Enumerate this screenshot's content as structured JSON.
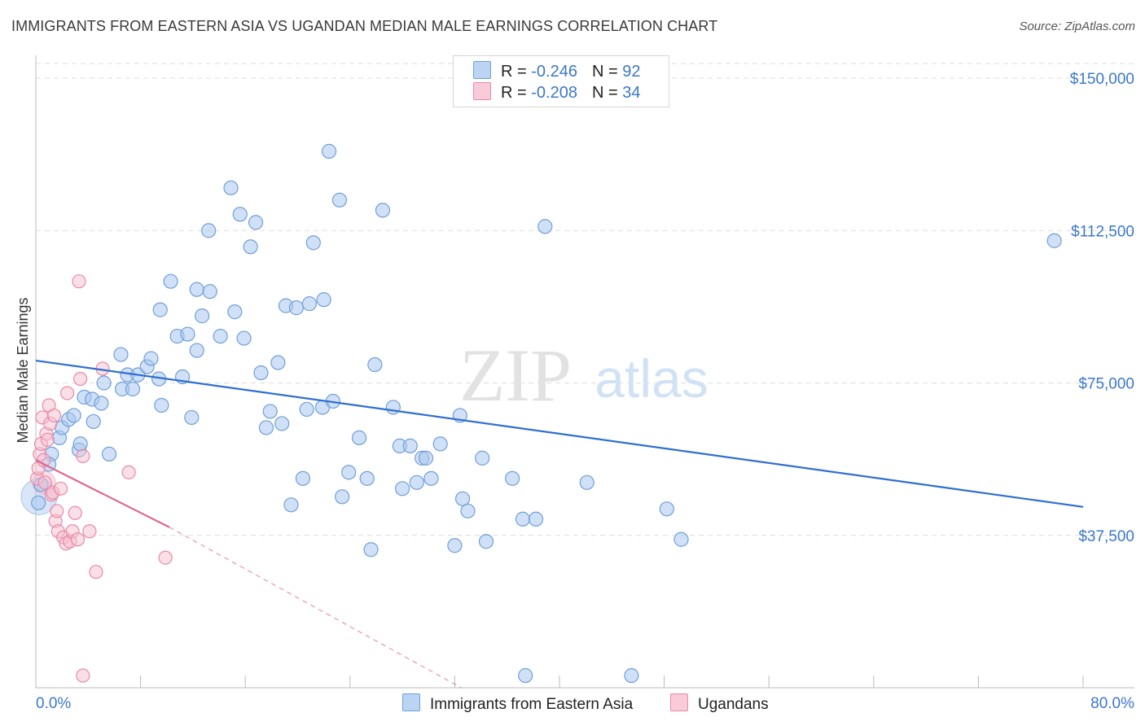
{
  "title": "IMMIGRANTS FROM EASTERN ASIA VS UGANDAN MEDIAN MALE EARNINGS CORRELATION CHART",
  "source": "Source: ZipAtlas.com",
  "watermark": {
    "zip": "ZIP",
    "atlas": "atlas"
  },
  "colors": {
    "blue_fill": "#a9c8f0",
    "blue_stroke": "#6f9fd8",
    "blue_line": "#2e6fd0",
    "pink_fill": "#f7bfd0",
    "pink_stroke": "#e68aa8",
    "pink_line": "#e06890",
    "grid": "#dddddd",
    "tick_text": "#3b78c9"
  },
  "legend": {
    "rows": [
      {
        "r_label": "R = ",
        "r_value": "-0.246",
        "n_label": "N = ",
        "n_value": "92"
      },
      {
        "r_label": "R = ",
        "r_value": "-0.208",
        "n_label": "N = ",
        "n_value": "34"
      }
    ]
  },
  "bottom_legend": [
    "Immigrants from Eastern Asia",
    "Ugandans"
  ],
  "chart_data": {
    "type": "scatter",
    "ylabel": "Median Male Earnings",
    "xlim": [
      0,
      80
    ],
    "ylim": [
      0,
      157500
    ],
    "x_tick_labels": {
      "min": "0.0%",
      "max": "80.0%"
    },
    "y_ticks": [
      {
        "value": 37500,
        "label": "$37,500"
      },
      {
        "value": 75000,
        "label": "$75,000"
      },
      {
        "value": 112500,
        "label": "$112,500"
      },
      {
        "value": 150000,
        "label": "$150,000"
      }
    ],
    "series": [
      {
        "name": "Immigrants from Eastern Asia",
        "R": -0.246,
        "N": 92,
        "trend": {
          "x": [
            0,
            80
          ],
          "y": [
            80500,
            44500
          ]
        },
        "points": [
          [
            0.2,
            45500
          ],
          [
            0.4,
            50000
          ],
          [
            1.2,
            57500
          ],
          [
            1.0,
            55000
          ],
          [
            1.8,
            61500
          ],
          [
            2.0,
            64000
          ],
          [
            2.5,
            66000
          ],
          [
            2.9,
            67000
          ],
          [
            3.3,
            58500
          ],
          [
            3.4,
            60000
          ],
          [
            4.4,
            65500
          ],
          [
            3.7,
            71500
          ],
          [
            4.3,
            71000
          ],
          [
            5.0,
            70000
          ],
          [
            5.6,
            57500
          ],
          [
            5.2,
            75000
          ],
          [
            6.6,
            73500
          ],
          [
            6.5,
            82000
          ],
          [
            7.0,
            77000
          ],
          [
            7.4,
            73500
          ],
          [
            7.8,
            77000
          ],
          [
            8.5,
            79000
          ],
          [
            8.8,
            81000
          ],
          [
            9.4,
            76000
          ],
          [
            9.6,
            69500
          ],
          [
            9.5,
            93000
          ],
          [
            10.3,
            100000
          ],
          [
            10.8,
            86500
          ],
          [
            11.2,
            76500
          ],
          [
            11.6,
            87000
          ],
          [
            11.9,
            66500
          ],
          [
            12.3,
            83000
          ],
          [
            12.3,
            98000
          ],
          [
            12.7,
            91500
          ],
          [
            13.2,
            112500
          ],
          [
            13.3,
            97500
          ],
          [
            14.1,
            86500
          ],
          [
            14.9,
            123000
          ],
          [
            15.2,
            92500
          ],
          [
            15.6,
            116500
          ],
          [
            15.9,
            86000
          ],
          [
            16.4,
            108500
          ],
          [
            16.8,
            114500
          ],
          [
            17.2,
            77500
          ],
          [
            17.6,
            64000
          ],
          [
            17.9,
            68000
          ],
          [
            18.5,
            80000
          ],
          [
            18.8,
            65000
          ],
          [
            19.1,
            94000
          ],
          [
            19.5,
            45000
          ],
          [
            19.9,
            93500
          ],
          [
            20.4,
            51500
          ],
          [
            20.7,
            68500
          ],
          [
            20.9,
            94500
          ],
          [
            21.2,
            109500
          ],
          [
            21.9,
            69000
          ],
          [
            22.0,
            95500
          ],
          [
            22.4,
            132000
          ],
          [
            22.7,
            70500
          ],
          [
            23.2,
            120000
          ],
          [
            23.4,
            47000
          ],
          [
            23.9,
            53000
          ],
          [
            24.7,
            61500
          ],
          [
            25.3,
            51500
          ],
          [
            25.6,
            34000
          ],
          [
            25.9,
            79500
          ],
          [
            26.5,
            117500
          ],
          [
            27.3,
            69000
          ],
          [
            27.8,
            59500
          ],
          [
            28.0,
            49000
          ],
          [
            28.6,
            59500
          ],
          [
            29.1,
            50500
          ],
          [
            29.5,
            56500
          ],
          [
            29.8,
            56500
          ],
          [
            30.2,
            51500
          ],
          [
            30.9,
            60000
          ],
          [
            32.0,
            35000
          ],
          [
            32.4,
            67000
          ],
          [
            32.6,
            46500
          ],
          [
            33.0,
            43500
          ],
          [
            34.1,
            56500
          ],
          [
            34.4,
            36000
          ],
          [
            36.4,
            51500
          ],
          [
            37.2,
            41500
          ],
          [
            37.4,
            3000
          ],
          [
            38.2,
            41500
          ],
          [
            38.9,
            113500
          ],
          [
            42.1,
            50500
          ],
          [
            45.5,
            3000
          ],
          [
            48.2,
            44000
          ],
          [
            49.3,
            36500
          ],
          [
            77.8,
            110000
          ]
        ]
      },
      {
        "name": "Ugandans",
        "R": -0.208,
        "N": 34,
        "trend": {
          "x": [
            0,
            10.2
          ],
          "y": [
            56000,
            39500
          ]
        },
        "trend_extension": {
          "x": [
            10.2,
            32.5
          ],
          "y": [
            39500,
            0
          ]
        },
        "points": [
          [
            0.1,
            51500
          ],
          [
            0.2,
            54000
          ],
          [
            0.3,
            57500
          ],
          [
            0.4,
            60000
          ],
          [
            0.5,
            66500
          ],
          [
            0.6,
            56000
          ],
          [
            0.7,
            50500
          ],
          [
            0.8,
            62500
          ],
          [
            0.9,
            61000
          ],
          [
            1.0,
            69500
          ],
          [
            1.1,
            65000
          ],
          [
            1.2,
            47500
          ],
          [
            1.3,
            48000
          ],
          [
            1.4,
            67000
          ],
          [
            1.5,
            41000
          ],
          [
            1.6,
            43500
          ],
          [
            1.7,
            38500
          ],
          [
            1.9,
            49000
          ],
          [
            2.1,
            37000
          ],
          [
            2.3,
            35500
          ],
          [
            2.4,
            72500
          ],
          [
            2.6,
            36000
          ],
          [
            2.8,
            38500
          ],
          [
            3.0,
            43000
          ],
          [
            3.2,
            36500
          ],
          [
            3.3,
            100000
          ],
          [
            3.4,
            76000
          ],
          [
            3.6,
            57000
          ],
          [
            4.1,
            38500
          ],
          [
            4.6,
            28500
          ],
          [
            5.1,
            78500
          ],
          [
            7.1,
            53000
          ],
          [
            9.9,
            32000
          ],
          [
            3.6,
            3000
          ]
        ]
      }
    ]
  }
}
